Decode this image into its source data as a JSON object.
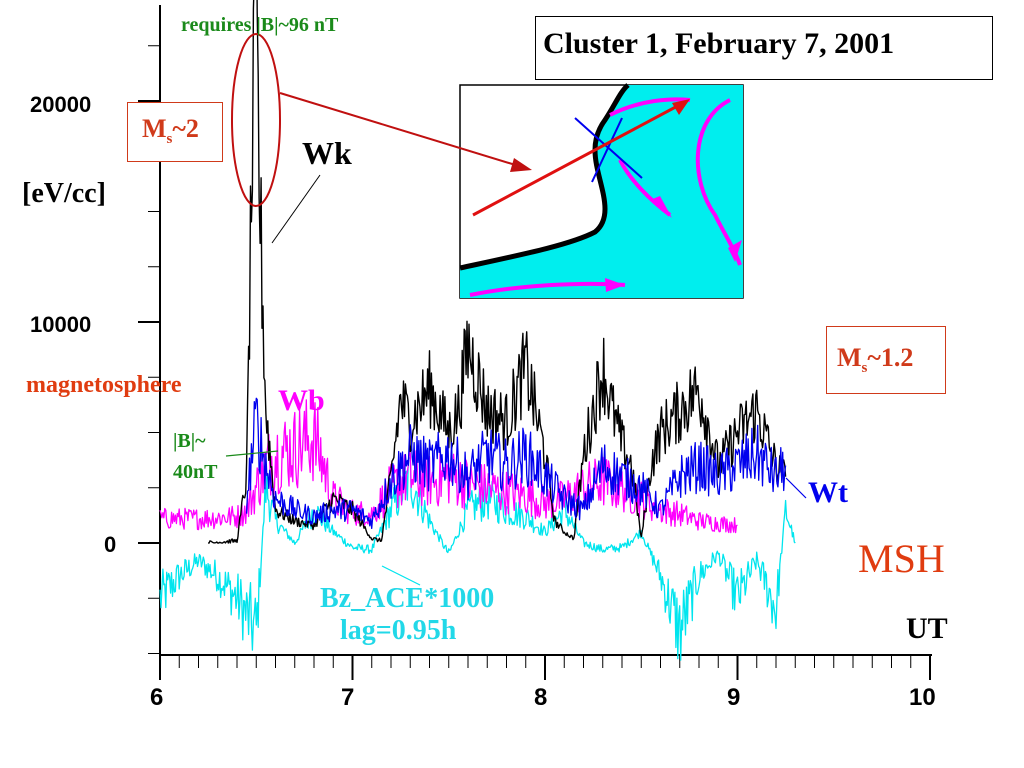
{
  "chart_data": {
    "type": "line",
    "title": "Cluster 1, February 7, 2001",
    "xlabel": "UT",
    "ylabel": "[eV/cc]",
    "xlim": [
      6,
      10
    ],
    "ylim": [
      -5000,
      24000
    ],
    "x_ticks": [
      "6",
      "7",
      "8",
      "9",
      "10"
    ],
    "y_ticks": [
      "20000",
      "10000",
      "0"
    ],
    "colors": {
      "Wk": "#000000",
      "Wb": "#ff00ff",
      "Wt": "#0000ee",
      "Bz_ACE": "#00e5ee",
      "annotation_red": "#e03c10",
      "annotation_green": "#1a8a1a",
      "ellipse": "#c01010",
      "inset_field": "#00eeee"
    },
    "series": [
      {
        "name": "Wk",
        "x": [
          6.25,
          6.4,
          6.45,
          6.48,
          6.5,
          6.52,
          6.55,
          6.6,
          6.7,
          6.8,
          6.9,
          7.0,
          7.1,
          7.15,
          7.2,
          7.25,
          7.3,
          7.4,
          7.5,
          7.55,
          7.6,
          7.7,
          7.8,
          7.9,
          8.0,
          8.05,
          8.1,
          8.15,
          8.2,
          8.3,
          8.35,
          8.4,
          8.45,
          8.5,
          8.55,
          8.6,
          8.7,
          8.8,
          8.9,
          9.0,
          9.1,
          9.2,
          9.25
        ],
        "values": [
          0,
          100,
          3000,
          18000,
          23500,
          15000,
          6000,
          1500,
          1000,
          800,
          2000,
          1500,
          200,
          100,
          3000,
          6500,
          5500,
          7000,
          5000,
          6000,
          9000,
          6000,
          5500,
          8000,
          4000,
          1000,
          500,
          200,
          4000,
          8000,
          6000,
          4500,
          3500,
          200,
          3500,
          5000,
          6000,
          7000,
          3500,
          5000,
          6000,
          3500,
          3000
        ]
      },
      {
        "name": "Wb",
        "x": [
          6.0,
          6.2,
          6.4,
          6.45,
          6.5,
          6.55,
          6.6,
          6.7,
          6.8,
          6.85,
          6.9,
          7.0,
          7.1,
          7.2,
          7.3,
          7.4,
          7.5,
          7.6,
          7.7,
          7.8,
          7.9,
          8.0,
          8.1,
          8.2,
          8.3,
          8.4,
          8.5,
          8.6,
          8.7,
          8.8,
          8.9,
          9.0
        ],
        "values": [
          1100,
          1100,
          1200,
          1500,
          2500,
          3500,
          4000,
          4300,
          4800,
          3500,
          2000,
          1400,
          1300,
          2500,
          3000,
          2800,
          3000,
          2700,
          2500,
          2300,
          2200,
          1800,
          2000,
          2500,
          2800,
          2500,
          2000,
          1500,
          1300,
          1000,
          900,
          800
        ]
      },
      {
        "name": "Wt",
        "x": [
          6.45,
          6.5,
          6.55,
          6.6,
          6.7,
          6.8,
          6.9,
          7.0,
          7.1,
          7.2,
          7.3,
          7.4,
          7.5,
          7.6,
          7.7,
          7.8,
          7.9,
          8.0,
          8.1,
          8.2,
          8.3,
          8.4,
          8.5,
          8.6,
          8.7,
          8.8,
          8.9,
          9.0,
          9.1,
          9.2,
          9.25
        ],
        "values": [
          2000,
          5500,
          3500,
          2000,
          1500,
          1200,
          1500,
          1500,
          1000,
          2800,
          4000,
          3500,
          4000,
          3000,
          4000,
          3500,
          4000,
          3000,
          2000,
          1500,
          3500,
          3000,
          2500,
          1500,
          3000,
          3500,
          3000,
          3500,
          4000,
          3000,
          3500
        ]
      },
      {
        "name": "Bz_ACE*1000",
        "x": [
          6.0,
          6.1,
          6.2,
          6.3,
          6.4,
          6.5,
          6.55,
          6.6,
          6.7,
          6.8,
          6.9,
          7.0,
          7.1,
          7.2,
          7.3,
          7.4,
          7.5,
          7.6,
          7.7,
          7.8,
          7.9,
          8.0,
          8.1,
          8.2,
          8.3,
          8.4,
          8.5,
          8.6,
          8.7,
          8.8,
          8.9,
          9.0,
          9.1,
          9.2,
          9.25,
          9.3
        ],
        "values": [
          -2500,
          -1500,
          -800,
          -1500,
          -2500,
          -4000,
          2500,
          1000,
          0,
          1500,
          500,
          -200,
          -300,
          1500,
          3000,
          1000,
          -500,
          1500,
          2000,
          1500,
          1200,
          500,
          1500,
          0,
          -300,
          -200,
          500,
          -1500,
          -4000,
          -1500,
          -500,
          -2500,
          -800,
          -3000,
          1500,
          0
        ]
      }
    ],
    "annotations": {
      "requires": "requires |B|~96 nT",
      "ms2_base": "M",
      "ms2_sub": "s",
      "ms2_rest": "~2",
      "wk": "Wk",
      "magnetosphere": "magnetosphere",
      "wb": "Wb",
      "b40_line1": "|B|~",
      "b40_line2": "40nT",
      "ms12_base": "M",
      "ms12_sub": "s",
      "ms12_rest": "~1.2",
      "wt": "Wt",
      "msh": "MSH",
      "bz_line1": "Bz_ACE*1000",
      "bz_line2": "lag=0.95h",
      "ut": "UT"
    }
  }
}
